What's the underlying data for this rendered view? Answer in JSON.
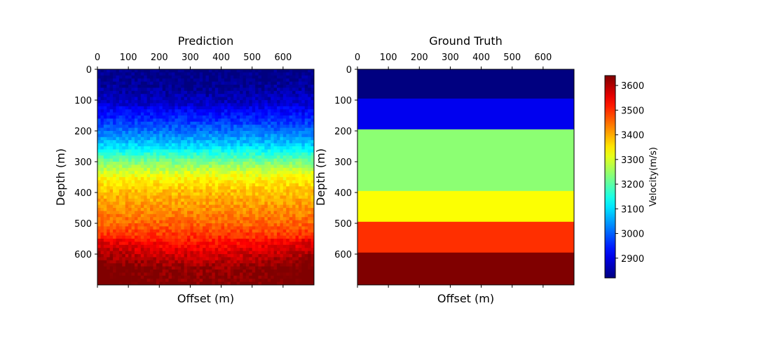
{
  "chart_data": [
    {
      "type": "heatmap",
      "title": "Prediction",
      "xlabel": "Offset (m)",
      "ylabel": "Depth (m)",
      "xlim": [
        0,
        700
      ],
      "ylim": [
        700,
        0
      ],
      "x_ticks": [
        "0",
        "100",
        "200",
        "300",
        "400",
        "500",
        "600"
      ],
      "y_ticks": [
        "0",
        "100",
        "200",
        "300",
        "400",
        "500",
        "600"
      ],
      "x_tick_position": "top",
      "grid": false,
      "colormap": "jet",
      "vmin": 2820,
      "vmax": 3640,
      "depth_profile": {
        "depth": [
          0,
          50,
          100,
          150,
          200,
          250,
          300,
          350,
          400,
          450,
          500,
          550,
          600,
          650,
          700
        ],
        "velocity": [
          2830,
          2845,
          2880,
          2940,
          3010,
          3100,
          3225,
          3330,
          3385,
          3420,
          3455,
          3510,
          3570,
          3625,
          3635
        ]
      },
      "noise_amplitude": 30
    },
    {
      "type": "heatmap",
      "title": "Ground Truth",
      "xlabel": "Offset (m)",
      "ylabel": "Depth (m)",
      "xlim": [
        0,
        700
      ],
      "ylim": [
        700,
        0
      ],
      "x_ticks": [
        "0",
        "100",
        "200",
        "300",
        "400",
        "500",
        "600"
      ],
      "y_ticks": [
        "0",
        "100",
        "200",
        "300",
        "400",
        "500",
        "600"
      ],
      "x_tick_position": "top",
      "grid": false,
      "colormap": "jet",
      "vmin": 2820,
      "vmax": 3640,
      "layers": [
        {
          "depth_top": 0,
          "depth_bottom": 95,
          "velocity": 2820
        },
        {
          "depth_top": 95,
          "depth_bottom": 195,
          "velocity": 2910
        },
        {
          "depth_top": 195,
          "depth_bottom": 395,
          "velocity": 3240
        },
        {
          "depth_top": 395,
          "depth_bottom": 495,
          "velocity": 3330
        },
        {
          "depth_top": 495,
          "depth_bottom": 595,
          "velocity": 3500
        },
        {
          "depth_top": 595,
          "depth_bottom": 700,
          "velocity": 3640
        }
      ]
    }
  ],
  "colorbar": {
    "label": "Velocity(m/s)",
    "ticks": [
      "2900",
      "3000",
      "3100",
      "3200",
      "3300",
      "3400",
      "3500",
      "3600"
    ],
    "colormap": "jet",
    "vmin": 2820,
    "vmax": 3640
  }
}
